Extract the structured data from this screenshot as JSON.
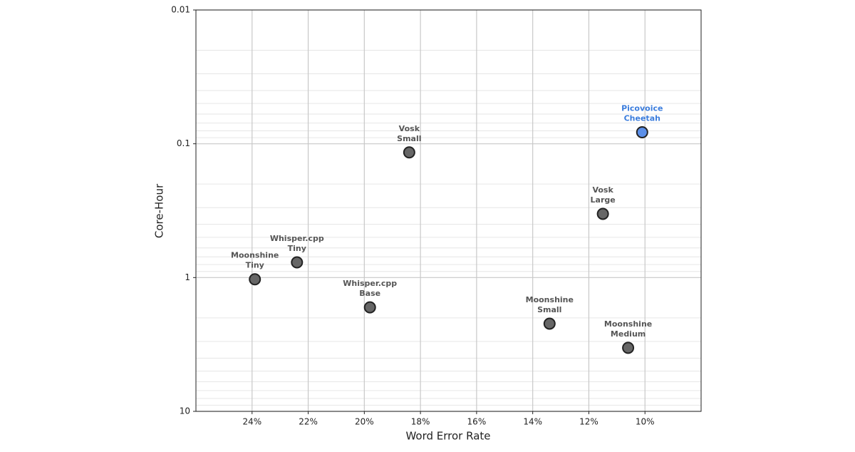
{
  "chart_data": {
    "type": "scatter",
    "x_label": "Word Error Rate",
    "y_label": "Core-Hour",
    "x": [
      10.1,
      18.4,
      11.5,
      22.4,
      23.9,
      19.8,
      13.4,
      10.6
    ],
    "values": [
      0.082,
      0.116,
      0.334,
      0.77,
      1.03,
      1.67,
      2.21,
      3.35
    ],
    "labels": [
      [
        "Picovoice",
        "Cheetah"
      ],
      [
        "Vosk",
        "Small"
      ],
      [
        "Vosk",
        "Large"
      ],
      [
        "Whisper.cpp",
        "Tiny"
      ],
      [
        "Moonshine",
        "Tiny"
      ],
      [
        "Whisper.cpp",
        "Base"
      ],
      [
        "Moonshine",
        "Small"
      ],
      [
        "Moonshine",
        "Medium"
      ]
    ],
    "colors": [
      "#5b8fe8",
      "#666666",
      "#666666",
      "#666666",
      "#666666",
      "#666666",
      "#666666",
      "#666666"
    ],
    "label_colors": [
      "#3b7ddd",
      "#555555",
      "#555555",
      "#555555",
      "#555555",
      "#555555",
      "#555555",
      "#555555"
    ],
    "xlim": [
      26,
      8
    ],
    "xticks": [
      {
        "value": 24,
        "label": "24%"
      },
      {
        "value": 22,
        "label": "22%"
      },
      {
        "value": 20,
        "label": "20%"
      },
      {
        "value": 18,
        "label": "18%"
      },
      {
        "value": 16,
        "label": "16%"
      },
      {
        "value": 14,
        "label": "14%"
      },
      {
        "value": 12,
        "label": "12%"
      },
      {
        "value": 10,
        "label": "10%"
      }
    ],
    "ylim": [
      10,
      0.01
    ],
    "yticks": [
      0.01,
      0.1,
      1,
      10
    ],
    "y_log": true,
    "grid": true,
    "minor_grid": true
  }
}
